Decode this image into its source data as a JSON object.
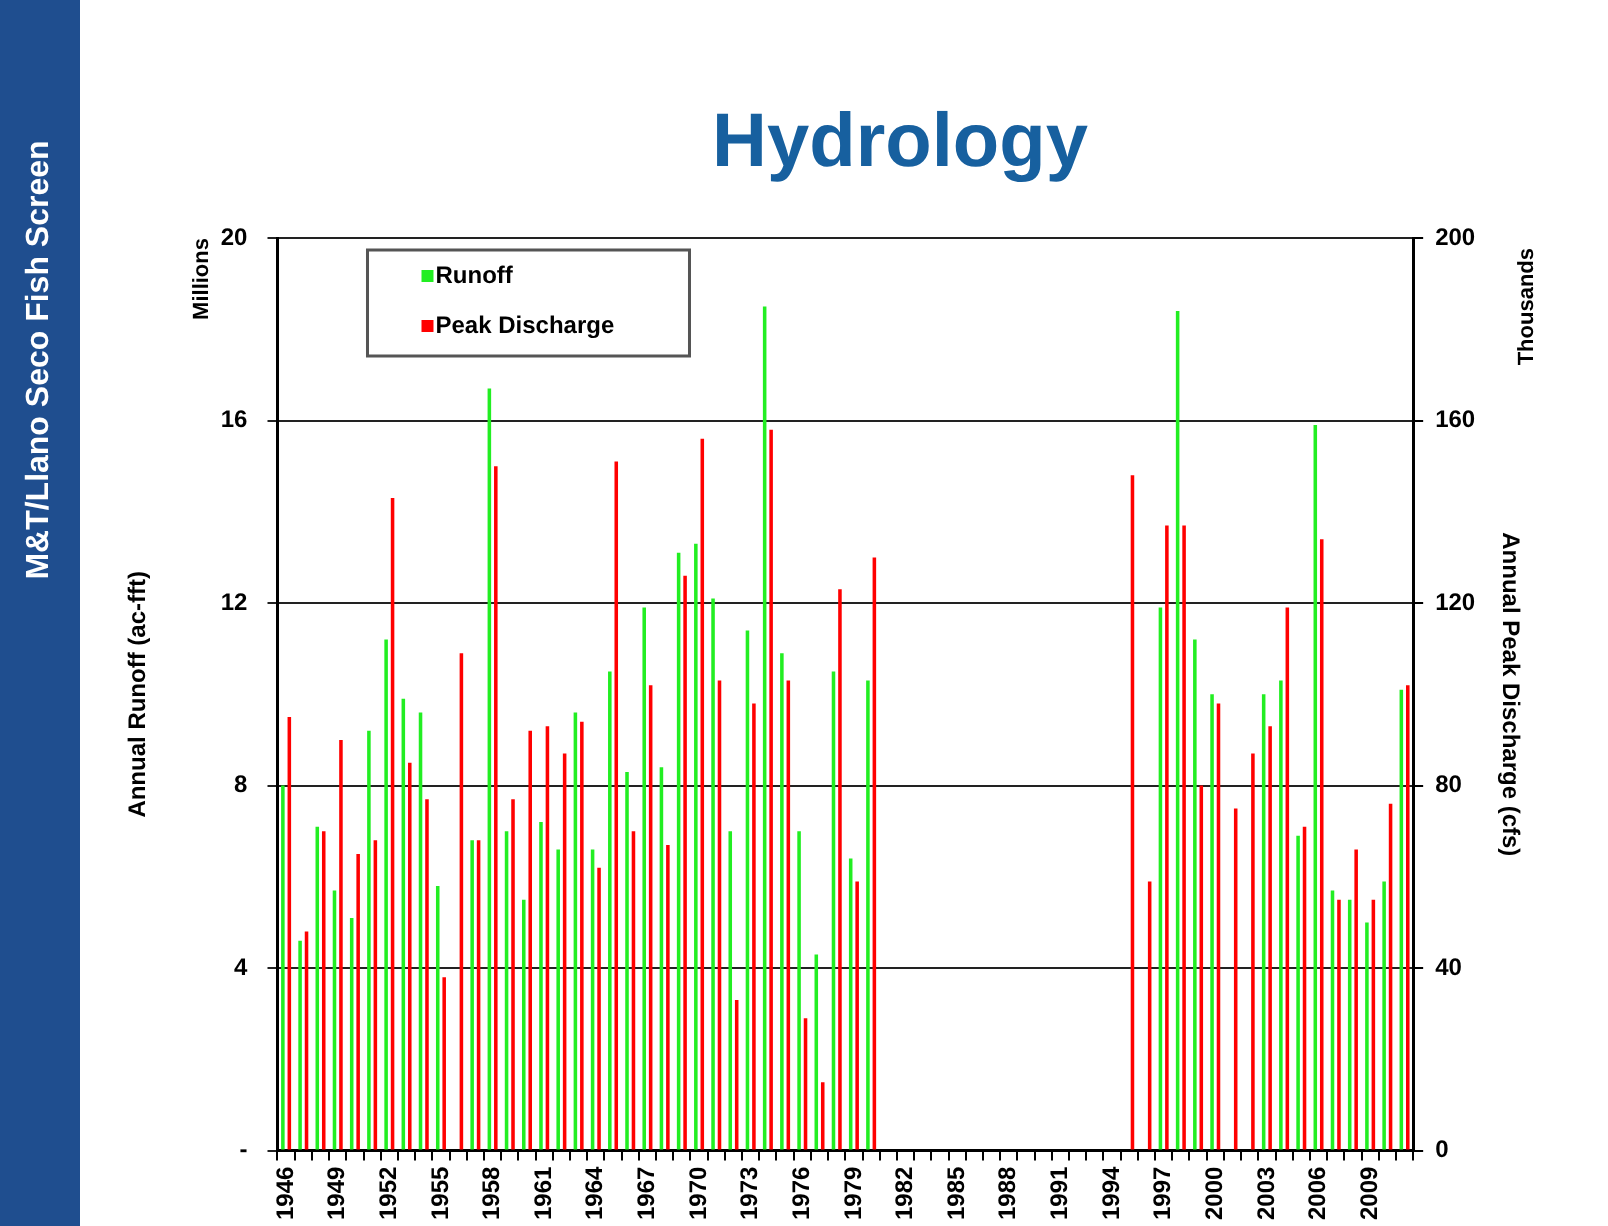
{
  "chart_data": {
    "type": "bar",
    "title": "Hydrology",
    "ylabel": "Annual Runoff (ac-fft)",
    "y2label": "Annual Peak Discharge (cfs)",
    "annotations": [
      "M&T/Llano Seco Fish Screen",
      "Millions",
      "Thousands"
    ],
    "categories": [
      "1946",
      null,
      null,
      "1949",
      null,
      null,
      "1952",
      null,
      null,
      "1955",
      null,
      null,
      "1958",
      null,
      null,
      "1961",
      null,
      null,
      "1964",
      null,
      null,
      "1967",
      null,
      null,
      "1970",
      null,
      null,
      "1973",
      null,
      null,
      "1976",
      null,
      null,
      "1979",
      null,
      null,
      "1982",
      null,
      null,
      "1985",
      null,
      null,
      "1988",
      null,
      null,
      "1991",
      null,
      null,
      "1994",
      null,
      null,
      "1997",
      null,
      null,
      "2000",
      null,
      null,
      "2003",
      null,
      null,
      "2006",
      null,
      null,
      "2009",
      null,
      null
    ],
    "series": [
      {
        "name": "Runoff",
        "color": "#22ee22",
        "values": [
          8.0,
          4.6,
          7.1,
          5.7,
          5.1,
          9.2,
          11.2,
          9.9,
          9.6,
          5.8,
          null,
          6.8,
          16.7,
          7.0,
          5.5,
          7.2,
          6.6,
          9.6,
          6.6,
          10.5,
          8.3,
          11.9,
          8.4,
          13.1,
          13.3,
          12.1,
          7.0,
          11.4,
          18.5,
          10.9,
          7.0,
          4.3,
          10.5,
          6.4,
          10.3,
          null,
          null,
          null,
          null,
          null,
          null,
          null,
          null,
          null,
          null,
          null,
          null,
          null,
          null,
          null,
          null,
          11.9,
          18.4,
          11.2,
          10.0,
          null,
          null,
          10.0,
          10.3,
          6.9,
          15.9,
          5.7,
          5.5,
          5.0,
          5.9,
          10.1
        ]
      },
      {
        "name": "Peak Discharge",
        "color": "#ff0000",
        "axis": "y2",
        "values": [
          95,
          48,
          70,
          90,
          65,
          68,
          143,
          85,
          77,
          38,
          109,
          68,
          150,
          77,
          92,
          93,
          87,
          94,
          62,
          151,
          70,
          102,
          67,
          126,
          156,
          103,
          33,
          98,
          158,
          103,
          29,
          15,
          123,
          59,
          130,
          null,
          null,
          null,
          null,
          null,
          null,
          null,
          null,
          null,
          null,
          null,
          null,
          null,
          null,
          148,
          59,
          137,
          137,
          80,
          98,
          75,
          87,
          93,
          119,
          71,
          134,
          55,
          66,
          55,
          76,
          102
        ]
      }
    ],
    "ylim": [
      0,
      20
    ],
    "yticks": [
      {
        "value": 0,
        "label": "-"
      },
      4,
      8,
      12,
      16,
      20
    ],
    "y2lim": [
      0,
      200
    ],
    "y2ticks": [
      0,
      40,
      80,
      120,
      160,
      200
    ],
    "grid": "y",
    "legend": "top left"
  }
}
